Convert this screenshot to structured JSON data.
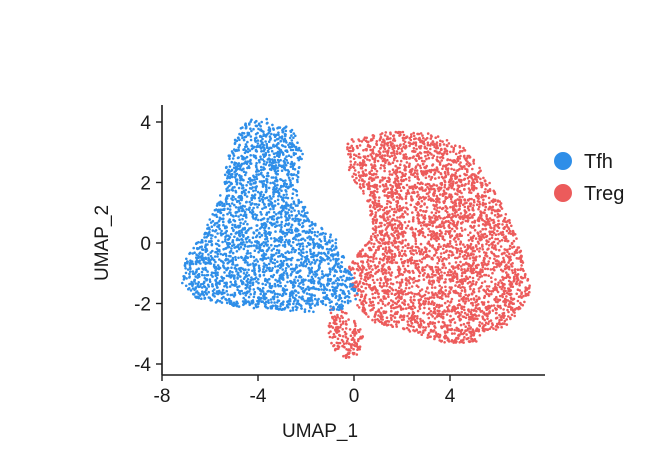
{
  "chart_data": {
    "type": "scatter",
    "title": "",
    "xlabel": "UMAP_1",
    "ylabel": "UMAP_2",
    "xlim": [
      -8,
      8
    ],
    "ylim": [
      -4.2,
      4.2
    ],
    "x_ticks": [
      -8,
      -4,
      0,
      4
    ],
    "y_ticks": [
      -4,
      -2,
      0,
      2,
      4
    ],
    "grid": false,
    "legend_position": "right",
    "series": [
      {
        "name": "Tfh",
        "color": "#2e8ee8",
        "approx_point_count": 2600,
        "cluster_outline": [
          [
            -4.6,
            4.1
          ],
          [
            -3.6,
            4.1
          ],
          [
            -2.6,
            3.8
          ],
          [
            -2.1,
            3.0
          ],
          [
            -2.4,
            1.8
          ],
          [
            -1.8,
            0.8
          ],
          [
            -0.8,
            0.2
          ],
          [
            -0.2,
            -0.8
          ],
          [
            0.2,
            -1.8
          ],
          [
            -0.5,
            -2.2
          ],
          [
            -1.8,
            -2.3
          ],
          [
            -3.5,
            -2.2
          ],
          [
            -5.2,
            -2.1
          ],
          [
            -6.6,
            -1.8
          ],
          [
            -7.2,
            -1.3
          ],
          [
            -7.0,
            -0.5
          ],
          [
            -6.3,
            0.3
          ],
          [
            -5.6,
            1.5
          ],
          [
            -5.2,
            3.0
          ]
        ]
      },
      {
        "name": "Treg",
        "color": "#ec5b5b",
        "approx_point_count": 3600,
        "cluster_outline": [
          [
            -0.3,
            3.4
          ],
          [
            1.6,
            3.7
          ],
          [
            3.4,
            3.6
          ],
          [
            4.7,
            3.1
          ],
          [
            6.0,
            1.6
          ],
          [
            6.8,
            0.2
          ],
          [
            7.4,
            -1.6
          ],
          [
            6.6,
            -2.6
          ],
          [
            5.0,
            -3.3
          ],
          [
            3.6,
            -3.3
          ],
          [
            2.2,
            -2.9
          ],
          [
            0.8,
            -2.6
          ],
          [
            0.0,
            -2.0
          ],
          [
            -0.2,
            -0.8
          ],
          [
            0.8,
            0.4
          ],
          [
            0.5,
            1.5
          ],
          [
            -0.3,
            2.4
          ]
        ],
        "tail_outline": [
          [
            -1.0,
            -2.0
          ],
          [
            -0.2,
            -2.3
          ],
          [
            0.4,
            -3.0
          ],
          [
            0.2,
            -3.8
          ],
          [
            -0.5,
            -3.8
          ],
          [
            -1.1,
            -3.3
          ]
        ]
      }
    ]
  }
}
